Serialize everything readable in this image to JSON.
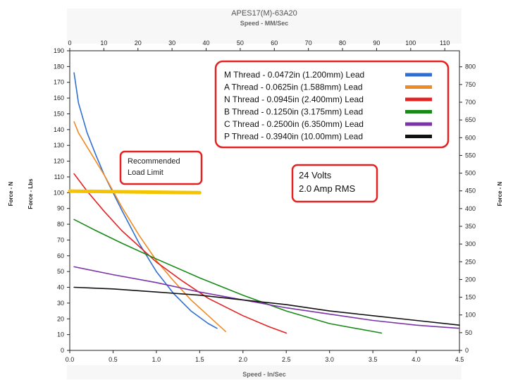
{
  "chart_data": {
    "type": "line",
    "title": "APES17(M)-63A20",
    "top_axis_label": "Speed - MM/Sec",
    "xlabel": "Speed - In/Sec",
    "ylabel_left_outer": "Force - N",
    "ylabel_left": "Force - Lbs",
    "ylabel_right": "Force - N",
    "xlim": [
      0,
      4.5
    ],
    "ylim": [
      0,
      190
    ],
    "top_xlim": [
      0,
      114.3
    ],
    "right_ylim": [
      0,
      845.2
    ],
    "x_ticks": [
      "0.0",
      "0.5",
      "1.0",
      "1.5",
      "2.0",
      "2.5",
      "3.0",
      "3.5",
      "4.0",
      "4.5"
    ],
    "y_ticks": [
      "0",
      "10",
      "20",
      "30",
      "40",
      "50",
      "60",
      "70",
      "80",
      "90",
      "100",
      "110",
      "120",
      "130",
      "140",
      "150",
      "160",
      "170",
      "180",
      "190"
    ],
    "top_ticks": [
      "0",
      "10",
      "20",
      "30",
      "40",
      "50",
      "60",
      "70",
      "80",
      "90",
      "100",
      "110"
    ],
    "right_ticks": [
      "0",
      "50",
      "100",
      "150",
      "200",
      "250",
      "300",
      "350",
      "400",
      "450",
      "500",
      "550",
      "600",
      "650",
      "700",
      "750",
      "800"
    ],
    "grid": false,
    "legend_position": "top-right",
    "series": [
      {
        "name": "M Thread - 0.0472in (1.200mm) Lead",
        "color": "#2f6fd1",
        "x": [
          0.05,
          0.1,
          0.2,
          0.3,
          0.4,
          0.6,
          0.8,
          1.0,
          1.2,
          1.4,
          1.6,
          1.7
        ],
        "y": [
          176,
          157,
          138,
          124,
          111,
          89,
          68,
          50,
          36,
          25,
          17,
          14
        ]
      },
      {
        "name": "A Thread - 0.0625in (1.588mm) Lead",
        "color": "#f08a24",
        "x": [
          0.05,
          0.1,
          0.2,
          0.4,
          0.6,
          0.8,
          1.0,
          1.2,
          1.4,
          1.6,
          1.8
        ],
        "y": [
          145,
          138,
          129,
          111,
          91,
          73,
          57,
          44,
          32,
          22,
          12
        ]
      },
      {
        "name": "N Thread - 0.0945in (2.400mm) Lead",
        "color": "#e32222",
        "x": [
          0.05,
          0.2,
          0.4,
          0.6,
          0.8,
          1.0,
          1.3,
          1.6,
          2.0,
          2.3,
          2.5
        ],
        "y": [
          112,
          101,
          88,
          76,
          66,
          56,
          44,
          33,
          22,
          15,
          11
        ]
      },
      {
        "name": "B Thread - 0.1250in (3.175mm) Lead",
        "color": "#198a19",
        "x": [
          0.05,
          0.3,
          0.6,
          1.0,
          1.5,
          2.0,
          2.5,
          3.0,
          3.6
        ],
        "y": [
          83,
          76,
          68,
          58,
          46,
          35,
          25,
          17,
          11
        ]
      },
      {
        "name": "C Thread - 0.2500in (6.350mm) Lead",
        "color": "#7a33a8",
        "x": [
          0.05,
          0.5,
          1.0,
          1.5,
          2.0,
          2.5,
          3.0,
          3.5,
          4.0,
          4.5
        ],
        "y": [
          53,
          48,
          43,
          37,
          32,
          27,
          23,
          19,
          16,
          14
        ]
      },
      {
        "name": "P Thread - 0.3940in (10.00mm) Lead",
        "color": "#111111",
        "x": [
          0.05,
          0.5,
          1.0,
          1.5,
          2.0,
          2.5,
          3.0,
          3.5,
          4.0,
          4.5
        ],
        "y": [
          40,
          39,
          37,
          35,
          32,
          29,
          25,
          22,
          19,
          16
        ]
      },
      {
        "name": "",
        "color": "#f5c400",
        "x": [
          0.0,
          1.5
        ],
        "y": [
          101,
          100
        ]
      }
    ],
    "annotations": {
      "load_limit_line1": "Recommended",
      "load_limit_line2": "Load Limit",
      "volts_line1": "24 Volts",
      "volts_line2": "2.0 Amp RMS"
    }
  }
}
